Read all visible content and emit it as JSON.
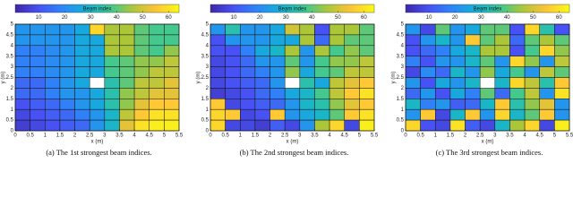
{
  "chart_data": [
    {
      "type": "heatmap",
      "caption": "(a) The 1st strongest beam indices.",
      "colorbar_label": "Beam index",
      "colormap": "parula",
      "clim": [
        1,
        64
      ],
      "colorbar_ticks": [
        10,
        20,
        30,
        40,
        50,
        60
      ],
      "xlabel": "x (m)",
      "ylabel": "y (m)",
      "xlim": [
        0,
        5.5
      ],
      "ylim": [
        0,
        5
      ],
      "xticks": [
        0,
        0.5,
        1,
        1.5,
        2,
        2.5,
        3,
        3.5,
        4,
        4.5,
        5,
        5.5
      ],
      "yticks": [
        0,
        0.5,
        1,
        1.5,
        2,
        2.5,
        3,
        3.5,
        4,
        4.5,
        5
      ],
      "values": [
        [
          22,
          22,
          22,
          22,
          26,
          58,
          46,
          46,
          40,
          38,
          38
        ],
        [
          22,
          22,
          22,
          22,
          26,
          26,
          46,
          46,
          40,
          38,
          38
        ],
        [
          18,
          18,
          20,
          22,
          26,
          26,
          46,
          46,
          40,
          38,
          44
        ],
        [
          18,
          18,
          20,
          22,
          26,
          26,
          38,
          40,
          44,
          44,
          48
        ],
        [
          18,
          18,
          20,
          22,
          26,
          26,
          38,
          40,
          44,
          48,
          48
        ],
        [
          14,
          14,
          18,
          22,
          26,
          null,
          34,
          40,
          48,
          48,
          52
        ],
        [
          14,
          14,
          18,
          22,
          22,
          26,
          34,
          44,
          48,
          52,
          52
        ],
        [
          10,
          12,
          14,
          18,
          22,
          26,
          34,
          44,
          52,
          56,
          56
        ],
        [
          8,
          10,
          12,
          14,
          18,
          22,
          30,
          48,
          56,
          60,
          60
        ],
        [
          6,
          8,
          10,
          12,
          14,
          22,
          30,
          52,
          60,
          62,
          62
        ]
      ]
    },
    {
      "type": "heatmap",
      "caption": "(b) The 2nd strongest beam indices.",
      "colorbar_label": "Beam index",
      "colormap": "parula",
      "clim": [
        1,
        64
      ],
      "colorbar_ticks": [
        10,
        20,
        30,
        40,
        50,
        60
      ],
      "xlabel": "x (m)",
      "ylabel": "y (m)",
      "xlim": [
        0,
        5.5
      ],
      "ylim": [
        0,
        5
      ],
      "xticks": [
        0,
        0.5,
        1,
        1.5,
        2,
        2.5,
        3,
        3.5,
        4,
        4.5,
        5,
        5.5
      ],
      "yticks": [
        0,
        0.5,
        1,
        1.5,
        2,
        2.5,
        3,
        3.5,
        4,
        4.5,
        5
      ],
      "values": [
        [
          22,
          34,
          22,
          22,
          26,
          50,
          46,
          10,
          46,
          46,
          40
        ],
        [
          10,
          22,
          22,
          22,
          26,
          26,
          46,
          14,
          46,
          40,
          40
        ],
        [
          10,
          10,
          18,
          26,
          30,
          46,
          22,
          46,
          38,
          44,
          40
        ],
        [
          8,
          10,
          14,
          22,
          22,
          40,
          22,
          38,
          44,
          44,
          48
        ],
        [
          8,
          10,
          14,
          18,
          22,
          44,
          26,
          38,
          40,
          48,
          48
        ],
        [
          8,
          10,
          12,
          14,
          22,
          null,
          34,
          26,
          48,
          52,
          56
        ],
        [
          6,
          8,
          10,
          14,
          18,
          26,
          30,
          38,
          48,
          56,
          60
        ],
        [
          56,
          8,
          10,
          12,
          14,
          22,
          30,
          34,
          44,
          52,
          56
        ],
        [
          58,
          56,
          8,
          10,
          56,
          22,
          26,
          30,
          40,
          56,
          60
        ],
        [
          58,
          8,
          8,
          6,
          12,
          8,
          22,
          46,
          58,
          8,
          62
        ]
      ]
    },
    {
      "type": "heatmap",
      "caption": "(c) The 3rd strongest beam indices.",
      "colorbar_label": "Beam index",
      "colormap": "parula",
      "clim": [
        1,
        64
      ],
      "colorbar_ticks": [
        10,
        20,
        30,
        40,
        50,
        60
      ],
      "xlabel": "x (m)",
      "ylabel": "y (m)",
      "xlim": [
        0,
        5.5
      ],
      "ylim": [
        0,
        5
      ],
      "xticks": [
        0,
        0.5,
        1,
        1.5,
        2,
        2.5,
        3,
        3.5,
        4,
        4.5,
        5,
        5.5
      ],
      "yticks": [
        0,
        0.5,
        1,
        1.5,
        2,
        2.5,
        3,
        3.5,
        4,
        4.5,
        5
      ],
      "values": [
        [
          22,
          8,
          40,
          22,
          26,
          40,
          40,
          10,
          58,
          34,
          10
        ],
        [
          10,
          22,
          30,
          22,
          56,
          40,
          46,
          14,
          40,
          46,
          40
        ],
        [
          10,
          14,
          18,
          26,
          30,
          46,
          46,
          10,
          38,
          58,
          44
        ],
        [
          18,
          10,
          22,
          22,
          30,
          40,
          22,
          58,
          44,
          22,
          48
        ],
        [
          8,
          20,
          14,
          30,
          22,
          44,
          26,
          38,
          22,
          48,
          40
        ],
        [
          22,
          10,
          26,
          22,
          30,
          null,
          30,
          58,
          48,
          34,
          56
        ],
        [
          14,
          22,
          10,
          26,
          18,
          40,
          14,
          38,
          48,
          22,
          60
        ],
        [
          30,
          18,
          22,
          12,
          14,
          30,
          56,
          34,
          44,
          52,
          22
        ],
        [
          22,
          56,
          8,
          30,
          56,
          22,
          58,
          30,
          40,
          56,
          22
        ],
        [
          58,
          10,
          8,
          60,
          12,
          8,
          30,
          46,
          58,
          8,
          62
        ]
      ]
    }
  ]
}
